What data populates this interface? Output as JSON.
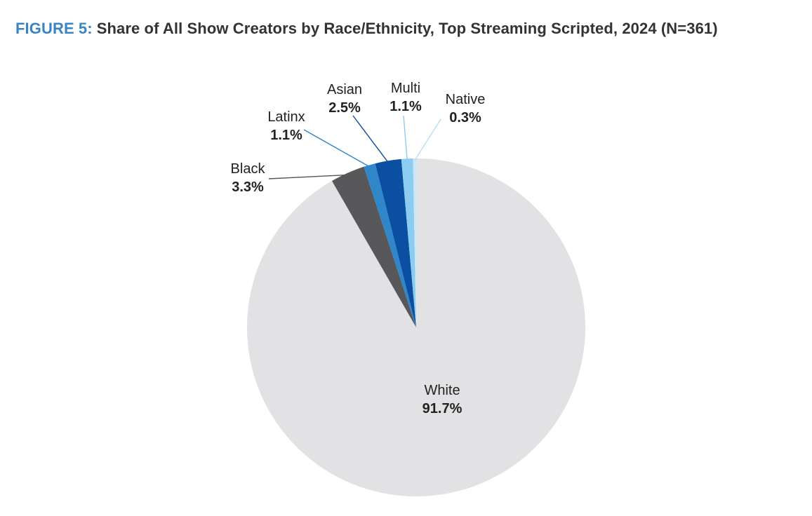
{
  "figure": {
    "label": "FIGURE 5:",
    "title": "Share of All Show Creators by Race/Ethnicity, Top Streaming Scripted, 2024 (N=361)"
  },
  "colors": {
    "label_accent": "#3a84c4",
    "title_text": "#333333",
    "label_text": "#222222"
  },
  "chart_data": {
    "type": "pie",
    "start": "12 o'clock",
    "direction": "clockwise",
    "slices": [
      {
        "label": "White",
        "value": 91.7,
        "value_label": "91.7%",
        "color": "#e2e2e4"
      },
      {
        "label": "Black",
        "value": 3.3,
        "value_label": "3.3%",
        "color": "#58585a"
      },
      {
        "label": "Latinx",
        "value": 1.1,
        "value_label": "1.1%",
        "color": "#2f86c9"
      },
      {
        "label": "Asian",
        "value": 2.5,
        "value_label": "2.5%",
        "color": "#0b4fa3"
      },
      {
        "label": "Multi",
        "value": 1.1,
        "value_label": "1.1%",
        "color": "#8dccf1"
      },
      {
        "label": "Native",
        "value": 0.3,
        "value_label": "0.3%",
        "color": "#cbe6f8"
      }
    ]
  }
}
